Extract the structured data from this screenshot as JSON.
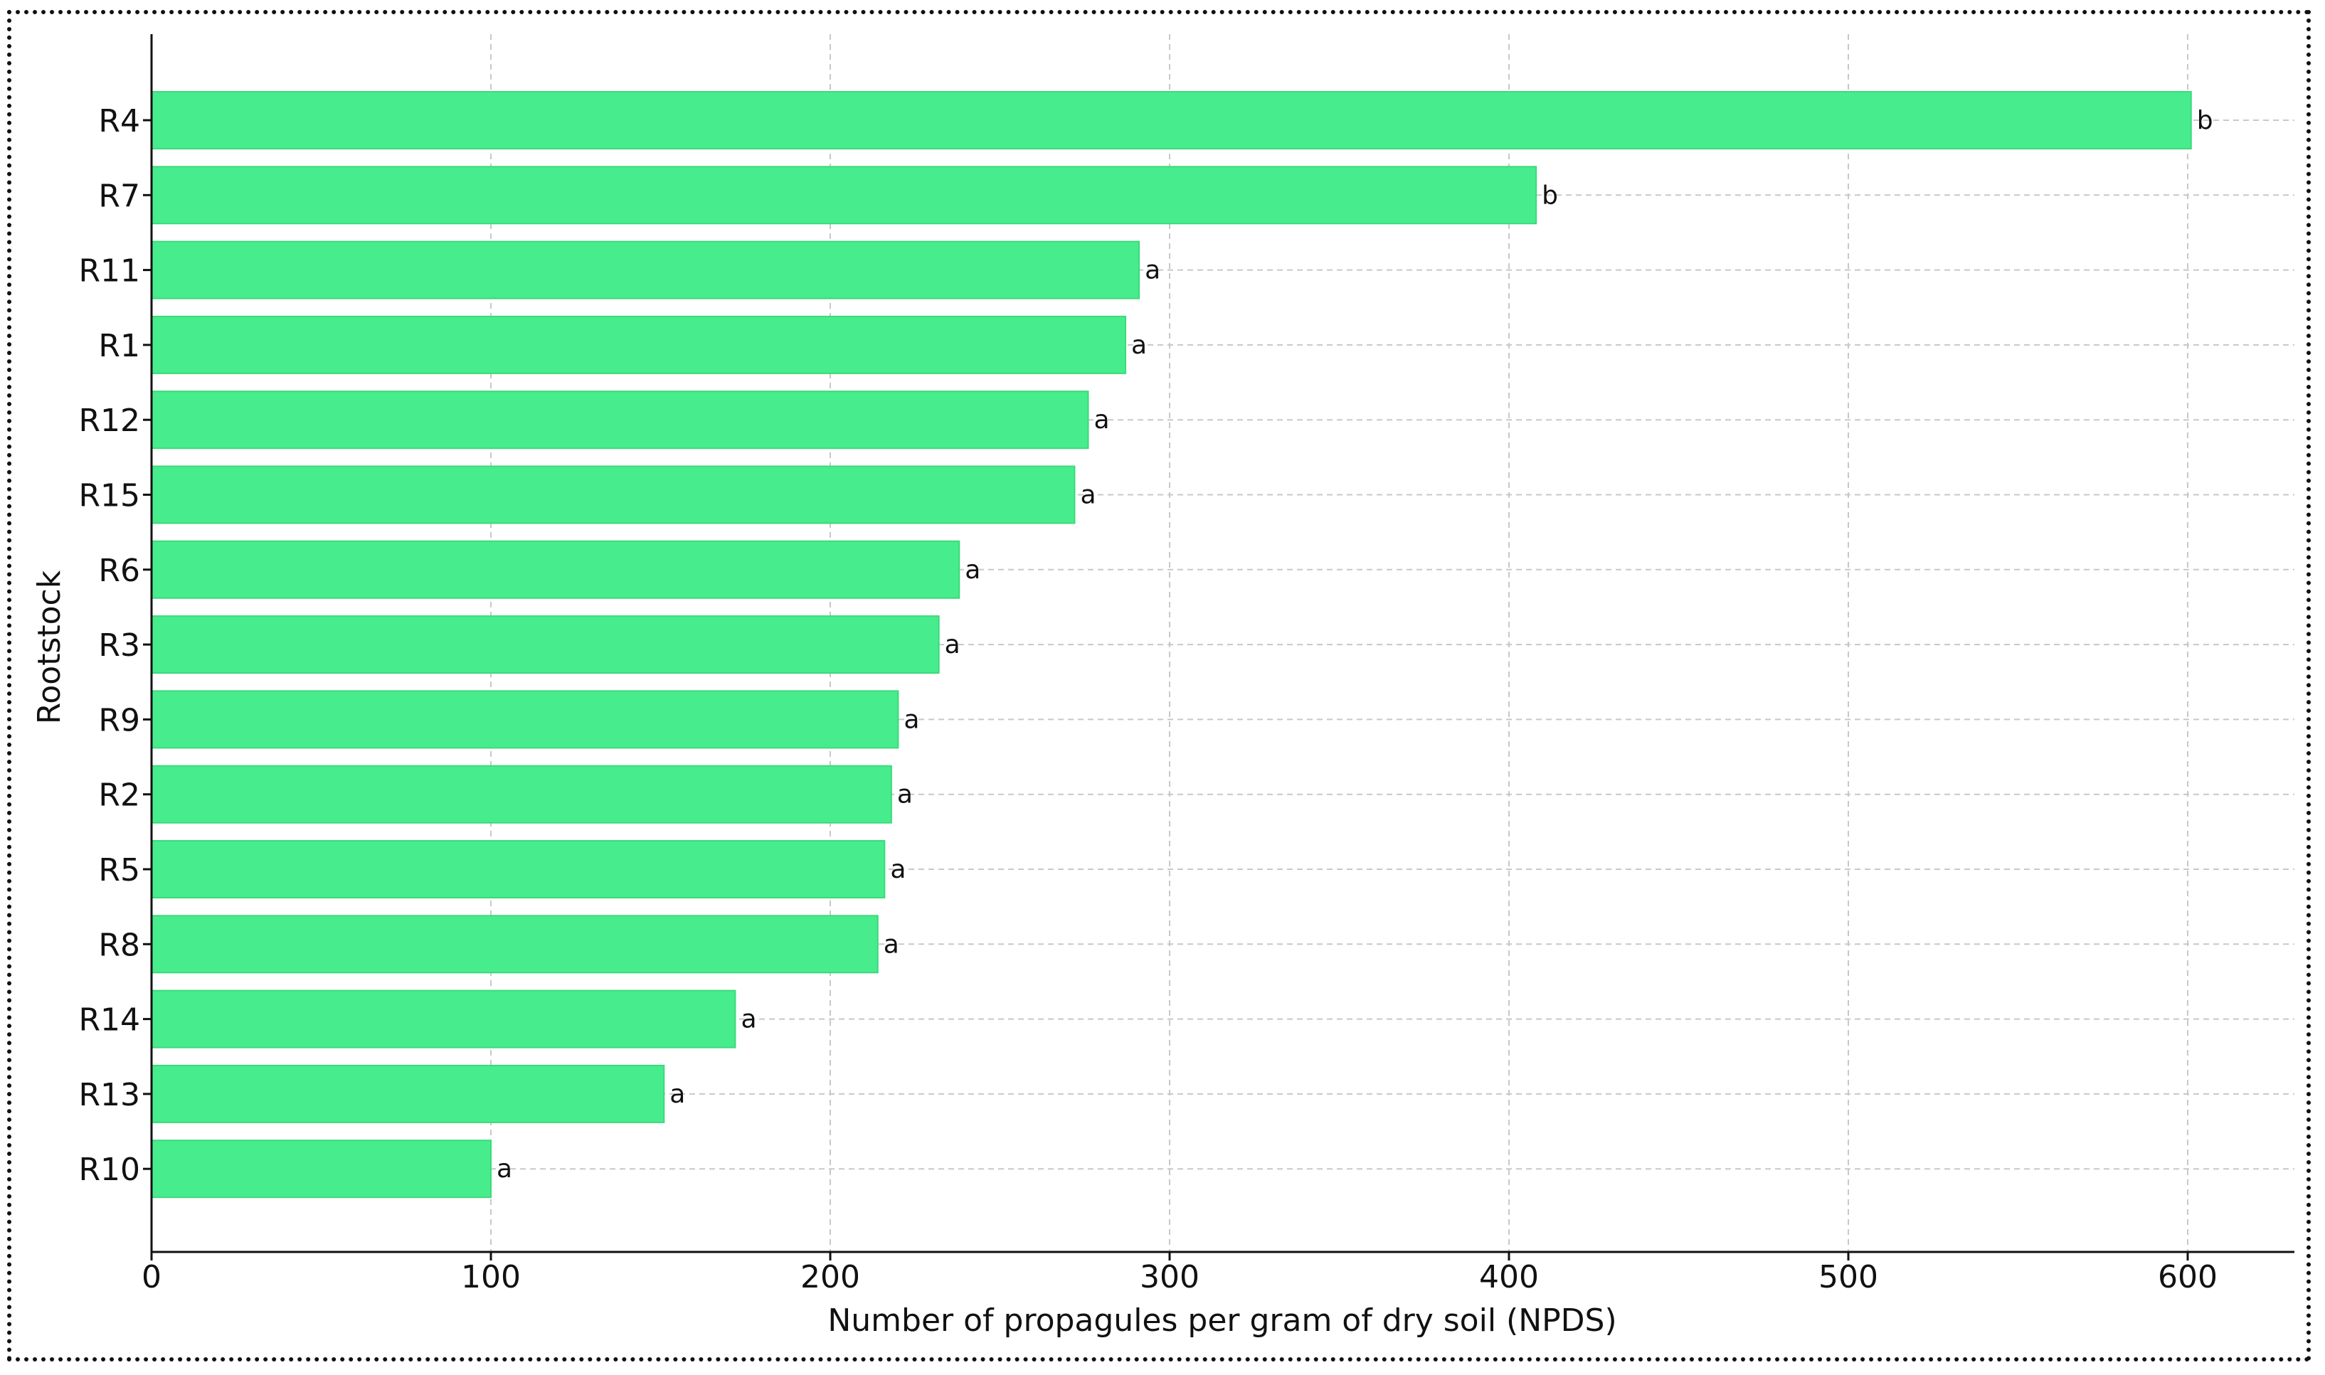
{
  "chart_data": {
    "type": "bar",
    "orientation": "horizontal",
    "categories": [
      "R4",
      "R7",
      "R11",
      "R1",
      "R12",
      "R15",
      "R6",
      "R3",
      "R9",
      "R2",
      "R5",
      "R8",
      "R14",
      "R13",
      "R10"
    ],
    "values": [
      601,
      408,
      291,
      287,
      276,
      272,
      238,
      232,
      220,
      218,
      216,
      214,
      172,
      151,
      100
    ],
    "labels": [
      "b",
      "b",
      "a",
      "a",
      "a",
      "a",
      "a",
      "a",
      "a",
      "a",
      "a",
      "a",
      "a",
      "a",
      "a"
    ],
    "xlabel": "Number of propagules per gram of dry soil (NPDS)",
    "ylabel": "Rootstock",
    "xlim": [
      0,
      630
    ],
    "xticks": [
      0,
      100,
      200,
      300,
      400,
      500,
      600
    ],
    "grid": true,
    "bar_color": "#47ED8C",
    "bar_edge_color": "#3CD97C",
    "grid_color": "#C8C8C8"
  }
}
